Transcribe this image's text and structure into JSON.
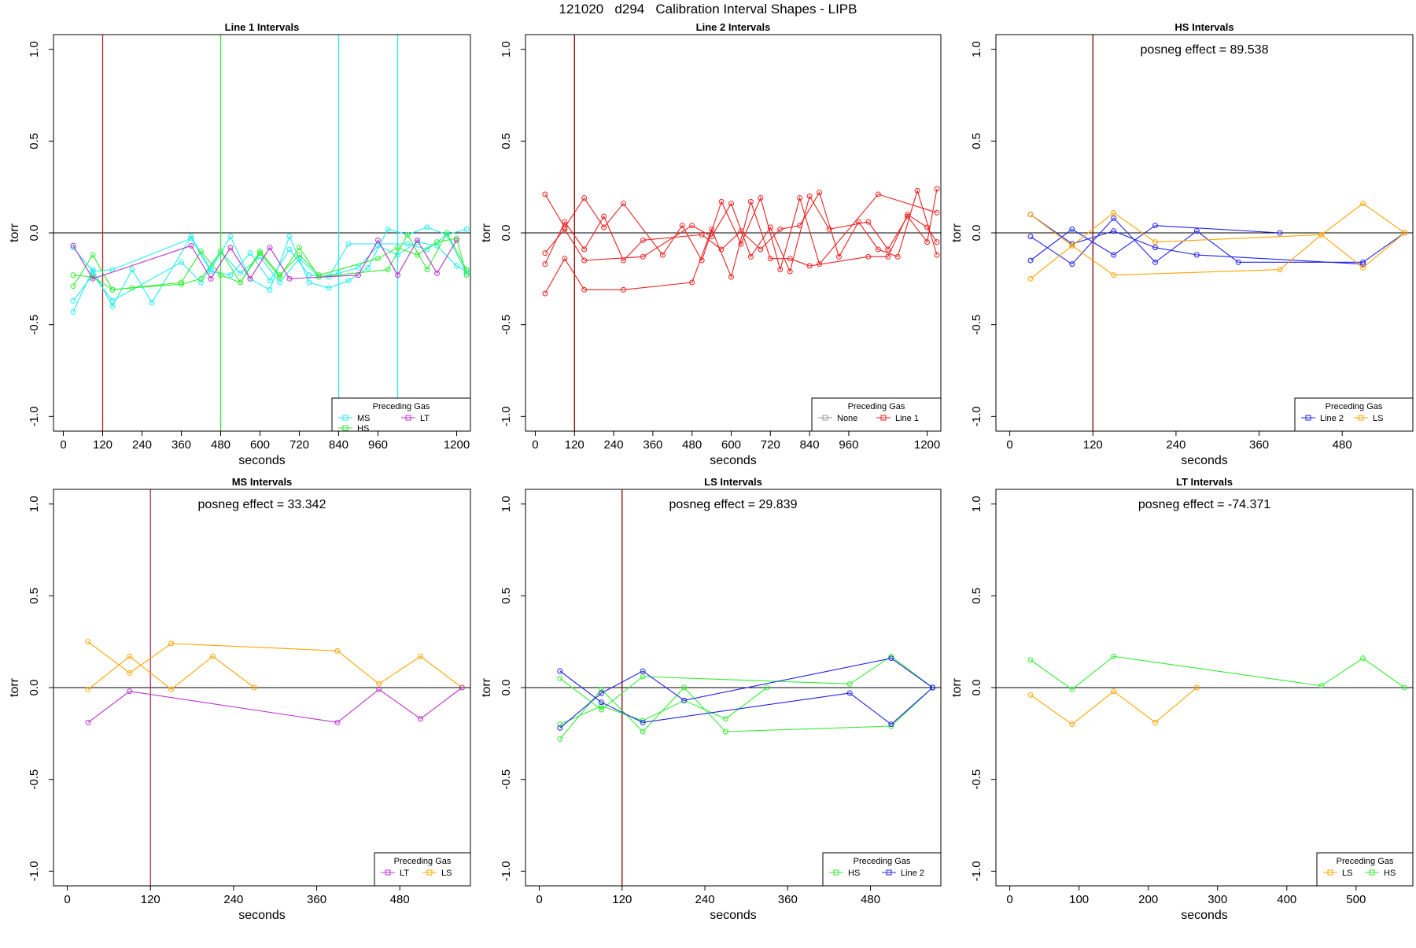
{
  "figure": {
    "title": "121020   d294   Calibration Interval Shapes - LIPB"
  },
  "chart_data": [
    {
      "id": "line1",
      "type": "line",
      "title": "Line 1 Intervals",
      "xlabel": "seconds",
      "ylabel": "torr",
      "xlim": [
        -30,
        1242
      ],
      "ylim": [
        -1.08,
        1.08
      ],
      "xticks": [
        0,
        120,
        240,
        360,
        480,
        600,
        720,
        840,
        960,
        1200
      ],
      "yticks": [
        -1.0,
        -0.5,
        0.0,
        0.5,
        1.0
      ],
      "ytick_labels": [
        "-1.0",
        "-0.5",
        "0.0",
        "0.5",
        "1.0"
      ],
      "annotation": "",
      "vlines": [
        {
          "x": 120,
          "color": "#b22222"
        },
        {
          "x": 480,
          "color": "#33ee33"
        },
        {
          "x": 840,
          "color": "#22eeee"
        },
        {
          "x": 1020,
          "color": "#22eeee"
        }
      ],
      "legend": {
        "title": "Preceding Gas",
        "items": [
          {
            "label": "MS",
            "color": "#22eeee"
          },
          {
            "label": "LT",
            "color": "#bb33cc"
          },
          {
            "label": "HS",
            "color": "#33ee33"
          }
        ]
      },
      "series": [
        {
          "name": "MS",
          "color": "#22eeee",
          "x": [
            30,
            90,
            150,
            210,
            270,
            390,
            450,
            510,
            570,
            630,
            690,
            750,
            810,
            870,
            930,
            990,
            1050,
            1110,
            1170,
            1230
          ],
          "y": [
            -0.43,
            -0.2,
            -0.4,
            -0.2,
            -0.38,
            -0.02,
            -0.2,
            -0.02,
            -0.25,
            -0.31,
            -0.02,
            -0.27,
            -0.3,
            -0.26,
            -0.19,
            0.02,
            -0.01,
            0.03,
            -0.01,
            0.02
          ]
        },
        {
          "name": "MS",
          "color": "#22eeee",
          "x": [
            30,
            90,
            150,
            360,
            420,
            480,
            540,
            600,
            660,
            720,
            780,
            840,
            900,
            960,
            1020,
            1080,
            1140,
            1200,
            1230
          ],
          "y": [
            -0.37,
            -0.23,
            -0.37,
            -0.16,
            -0.27,
            -0.1,
            -0.22,
            -0.13,
            -0.27,
            -0.14,
            -0.24,
            -0.22,
            -0.19,
            -0.07,
            -0.12,
            -0.05,
            -0.07,
            -0.18,
            -0.21
          ]
        },
        {
          "name": "MS",
          "color": "#22eeee",
          "x": [
            30,
            90,
            150,
            390,
            450,
            510,
            570,
            630,
            690,
            750,
            810,
            870,
            1050,
            1110,
            1170,
            1230
          ],
          "y": [
            -0.08,
            -0.21,
            -0.2,
            -0.03,
            -0.21,
            -0.23,
            -0.11,
            -0.26,
            -0.09,
            -0.23,
            -0.24,
            -0.06,
            -0.06,
            -0.09,
            -0.01,
            -0.22
          ]
        },
        {
          "name": "HS",
          "color": "#33ee33",
          "x": [
            30,
            90,
            150,
            360,
            420,
            480,
            540,
            600,
            660,
            720,
            780,
            990,
            1050,
            1110,
            1170,
            1230
          ],
          "y": [
            -0.29,
            -0.12,
            -0.31,
            -0.27,
            -0.1,
            -0.23,
            -0.27,
            -0.11,
            -0.24,
            -0.08,
            -0.24,
            -0.2,
            -0.01,
            -0.2,
            0.0,
            -0.2
          ]
        },
        {
          "name": "HS",
          "color": "#33ee33",
          "x": [
            30,
            90,
            150,
            210,
            360,
            420,
            480,
            540,
            600,
            660,
            720,
            780,
            960,
            1020,
            1080,
            1140,
            1200,
            1230
          ],
          "y": [
            -0.23,
            -0.24,
            -0.31,
            -0.3,
            -0.28,
            -0.25,
            -0.1,
            -0.27,
            -0.1,
            -0.23,
            -0.12,
            -0.23,
            -0.14,
            -0.08,
            -0.12,
            -0.05,
            -0.03,
            -0.23
          ]
        },
        {
          "name": "LT",
          "color": "#bb33cc",
          "x": [
            30,
            90,
            390,
            450,
            510,
            570,
            630,
            690,
            900,
            960,
            1020,
            1080,
            1140,
            1200
          ],
          "y": [
            -0.07,
            -0.25,
            -0.07,
            -0.25,
            -0.08,
            -0.25,
            -0.08,
            -0.25,
            -0.23,
            -0.04,
            -0.23,
            -0.04,
            -0.22,
            -0.04
          ]
        }
      ]
    },
    {
      "id": "line2",
      "type": "line",
      "title": "Line 2 Intervals",
      "xlabel": "seconds",
      "ylabel": "torr",
      "xlim": [
        -30,
        1242
      ],
      "ylim": [
        -1.08,
        1.08
      ],
      "xticks": [
        0,
        120,
        240,
        360,
        480,
        600,
        720,
        840,
        960,
        1200
      ],
      "yticks": [
        -1.0,
        -0.5,
        0.0,
        0.5,
        1.0
      ],
      "ytick_labels": [
        "-1.0",
        "-0.5",
        "0.0",
        "0.5",
        "1.0"
      ],
      "annotation": "",
      "vlines": [
        {
          "x": 120,
          "color": "#8b0000"
        }
      ],
      "legend": {
        "title": "Preceding Gas",
        "items": [
          {
            "label": "None",
            "color": "#999999"
          },
          {
            "label": "Line 1",
            "color": "#ee2222"
          }
        ]
      },
      "series": [
        {
          "name": "Line 1",
          "color": "#ee2222",
          "x": [
            30,
            90,
            150,
            210,
            270,
            390,
            450,
            510,
            570,
            630,
            690,
            750,
            810,
            870,
            1050,
            1230
          ],
          "y": [
            0.21,
            0.03,
            0.19,
            0.03,
            0.16,
            -0.12,
            0.04,
            -0.15,
            0.17,
            -0.06,
            0.19,
            -0.2,
            0.19,
            -0.17,
            0.21,
            0.11
          ]
        },
        {
          "name": "Line 1",
          "color": "#ee2222",
          "x": [
            30,
            90,
            150,
            210,
            270,
            330,
            510,
            570,
            630,
            690,
            750,
            810,
            870,
            930,
            990,
            1050,
            1110,
            1170,
            1230
          ],
          "y": [
            -0.17,
            0.06,
            -0.09,
            0.09,
            -0.15,
            -0.04,
            -0.01,
            -0.09,
            0.01,
            -0.09,
            0.02,
            0.04,
            0.22,
            -0.13,
            0.06,
            -0.09,
            -0.13,
            0.23,
            -0.12
          ]
        },
        {
          "name": "Line 1",
          "color": "#ee2222",
          "x": [
            30,
            90,
            150,
            330,
            480,
            540,
            600,
            660,
            720,
            780,
            840,
            900,
            1020,
            1080,
            1140,
            1200,
            1230
          ],
          "y": [
            -0.11,
            0.02,
            -0.15,
            -0.13,
            0.04,
            -0.02,
            0.16,
            -0.13,
            0.03,
            -0.21,
            0.2,
            0.02,
            0.06,
            -0.09,
            0.09,
            -0.05,
            0.24
          ]
        },
        {
          "name": "Line 1",
          "color": "#ee2222",
          "x": [
            30,
            90,
            150,
            270,
            480,
            540,
            600,
            660,
            720,
            780,
            840,
            1020,
            1080,
            1140,
            1200,
            1230
          ],
          "y": [
            -0.33,
            -0.14,
            -0.31,
            -0.31,
            -0.27,
            0.02,
            -0.24,
            0.17,
            -0.14,
            -0.14,
            -0.18,
            -0.13,
            -0.13,
            0.1,
            0.03,
            -0.05
          ]
        }
      ]
    },
    {
      "id": "hs",
      "type": "line",
      "title": "HS Intervals",
      "xlabel": "seconds",
      "ylabel": "torr",
      "xlim": [
        -20,
        582
      ],
      "ylim": [
        -1.08,
        1.08
      ],
      "xticks": [
        0,
        120,
        240,
        360,
        480
      ],
      "yticks": [
        -1.0,
        -0.5,
        0.0,
        0.5,
        1.0
      ],
      "ytick_labels": [
        "-1.0",
        "-0.5",
        "0.0",
        "0.5",
        "1.0"
      ],
      "annotation": "posneg effect = 89.538",
      "vlines": [
        {
          "x": 120,
          "color": "#8b0000"
        }
      ],
      "legend": {
        "title": "Preceding Gas",
        "items": [
          {
            "label": "Line 2",
            "color": "#2222ee"
          },
          {
            "label": "LS",
            "color": "#ffa500"
          }
        ]
      },
      "series": [
        {
          "name": "Line 2",
          "color": "#2222ee",
          "x": [
            30,
            90,
            150,
            210,
            270,
            330,
            510,
            570
          ],
          "y": [
            -0.02,
            -0.17,
            0.08,
            -0.16,
            0.01,
            -0.16,
            -0.16,
            0.0
          ]
        },
        {
          "name": "Line 2",
          "color": "#2222ee",
          "x": [
            30,
            90,
            150,
            210,
            390
          ],
          "y": [
            -0.15,
            0.02,
            -0.12,
            0.04,
            0.0
          ]
        },
        {
          "name": "Line 2",
          "color": "#2222ee",
          "x": [
            30,
            90,
            150,
            210,
            270,
            510
          ],
          "y": [
            0.1,
            -0.06,
            0.01,
            -0.08,
            -0.12,
            -0.17
          ]
        },
        {
          "name": "LS",
          "color": "#ffa500",
          "x": [
            30,
            90,
            150,
            210,
            450,
            510,
            570
          ],
          "y": [
            -0.25,
            -0.07,
            0.11,
            -0.05,
            -0.01,
            0.16,
            0.0
          ]
        },
        {
          "name": "LS",
          "color": "#ffa500",
          "x": [
            30,
            90,
            150,
            390,
            450,
            510,
            570
          ],
          "y": [
            0.1,
            -0.07,
            -0.23,
            -0.2,
            -0.01,
            -0.19,
            0.0
          ]
        }
      ]
    },
    {
      "id": "ms",
      "type": "line",
      "title": "MS Intervals",
      "xlabel": "seconds",
      "ylabel": "torr",
      "xlim": [
        -20,
        582
      ],
      "ylim": [
        -1.08,
        1.08
      ],
      "xticks": [
        0,
        120,
        240,
        360,
        480
      ],
      "yticks": [
        -1.0,
        -0.5,
        0.0,
        0.5,
        1.0
      ],
      "ytick_labels": [
        "-1.0",
        "-0.5",
        "0.0",
        "0.5",
        "1.0"
      ],
      "annotation": "posneg effect = 33.342",
      "vlines": [
        {
          "x": 120,
          "color": "#b03060"
        }
      ],
      "legend": {
        "title": "Preceding Gas",
        "items": [
          {
            "label": "LT",
            "color": "#bb33cc"
          },
          {
            "label": "LS",
            "color": "#ffa500"
          }
        ]
      },
      "series": [
        {
          "name": "LS",
          "color": "#ffa500",
          "x": [
            30,
            90,
            150,
            390,
            450,
            510,
            570
          ],
          "y": [
            0.25,
            0.08,
            0.24,
            0.2,
            0.02,
            0.17,
            0.0
          ]
        },
        {
          "name": "LS",
          "color": "#ffa500",
          "x": [
            30,
            90,
            150,
            210,
            270
          ],
          "y": [
            -0.01,
            0.17,
            -0.01,
            0.17,
            0.0
          ]
        },
        {
          "name": "LT",
          "color": "#bb33cc",
          "x": [
            30,
            90,
            390,
            450,
            510,
            570
          ],
          "y": [
            -0.19,
            -0.02,
            -0.19,
            -0.01,
            -0.17,
            0.0
          ]
        }
      ]
    },
    {
      "id": "ls",
      "type": "line",
      "title": "LS Intervals",
      "xlabel": "seconds",
      "ylabel": "torr",
      "xlim": [
        -20,
        582
      ],
      "ylim": [
        -1.08,
        1.08
      ],
      "xticks": [
        0,
        120,
        240,
        360,
        480
      ],
      "yticks": [
        -1.0,
        -0.5,
        0.0,
        0.5,
        1.0
      ],
      "ytick_labels": [
        "-1.0",
        "-0.5",
        "0.0",
        "0.5",
        "1.0"
      ],
      "annotation": "posneg effect = 29.839",
      "vlines": [
        {
          "x": 120,
          "color": "#8b0000"
        }
      ],
      "legend": {
        "title": "Preceding Gas",
        "items": [
          {
            "label": "HS",
            "color": "#33ee33"
          },
          {
            "label": "Line 2",
            "color": "#2222ee"
          }
        ]
      },
      "series": [
        {
          "name": "HS",
          "color": "#33ee33",
          "x": [
            30,
            90,
            150,
            450,
            510,
            570
          ],
          "y": [
            0.05,
            -0.12,
            0.06,
            0.02,
            0.17,
            0.0
          ]
        },
        {
          "name": "HS",
          "color": "#33ee33",
          "x": [
            30,
            90,
            150,
            210,
            270,
            510,
            570
          ],
          "y": [
            -0.28,
            -0.01,
            -0.24,
            0.0,
            -0.24,
            -0.21,
            0.0
          ]
        },
        {
          "name": "HS",
          "color": "#33ee33",
          "x": [
            30,
            90,
            150,
            210,
            270,
            330
          ],
          "y": [
            -0.2,
            -0.1,
            -0.18,
            -0.07,
            -0.17,
            0.0
          ]
        },
        {
          "name": "Line 2",
          "color": "#2222ee",
          "x": [
            30,
            90,
            150,
            450,
            510,
            570
          ],
          "y": [
            0.09,
            -0.08,
            -0.19,
            -0.03,
            -0.2,
            0.0
          ]
        },
        {
          "name": "Line 2",
          "color": "#2222ee",
          "x": [
            30,
            90,
            150,
            210,
            510,
            570
          ],
          "y": [
            -0.22,
            -0.03,
            0.09,
            -0.07,
            0.16,
            0.0
          ]
        }
      ]
    },
    {
      "id": "lt",
      "type": "line",
      "title": "LT Intervals",
      "xlabel": "seconds",
      "ylabel": "torr",
      "xlim": [
        -20,
        582
      ],
      "ylim": [
        -1.08,
        1.08
      ],
      "xticks": [
        0,
        100,
        200,
        300,
        400,
        500
      ],
      "yticks": [
        -1.0,
        -0.5,
        0.0,
        0.5,
        1.0
      ],
      "ytick_labels": [
        "-1.0",
        "-0.5",
        "0.0",
        "0.5",
        "1.0"
      ],
      "annotation": "posneg effect = -74.371",
      "vlines": [],
      "legend": {
        "title": "Preceding Gas",
        "items": [
          {
            "label": "LS",
            "color": "#ffa500"
          },
          {
            "label": "HS",
            "color": "#33ee33"
          }
        ]
      },
      "series": [
        {
          "name": "HS",
          "color": "#33ee33",
          "x": [
            30,
            90,
            150,
            450,
            510,
            570
          ],
          "y": [
            0.15,
            -0.01,
            0.17,
            0.01,
            0.16,
            0.0
          ]
        },
        {
          "name": "LS",
          "color": "#ffa500",
          "x": [
            30,
            90,
            150,
            210,
            270
          ],
          "y": [
            -0.04,
            -0.2,
            -0.02,
            -0.19,
            0.0
          ]
        }
      ]
    }
  ]
}
